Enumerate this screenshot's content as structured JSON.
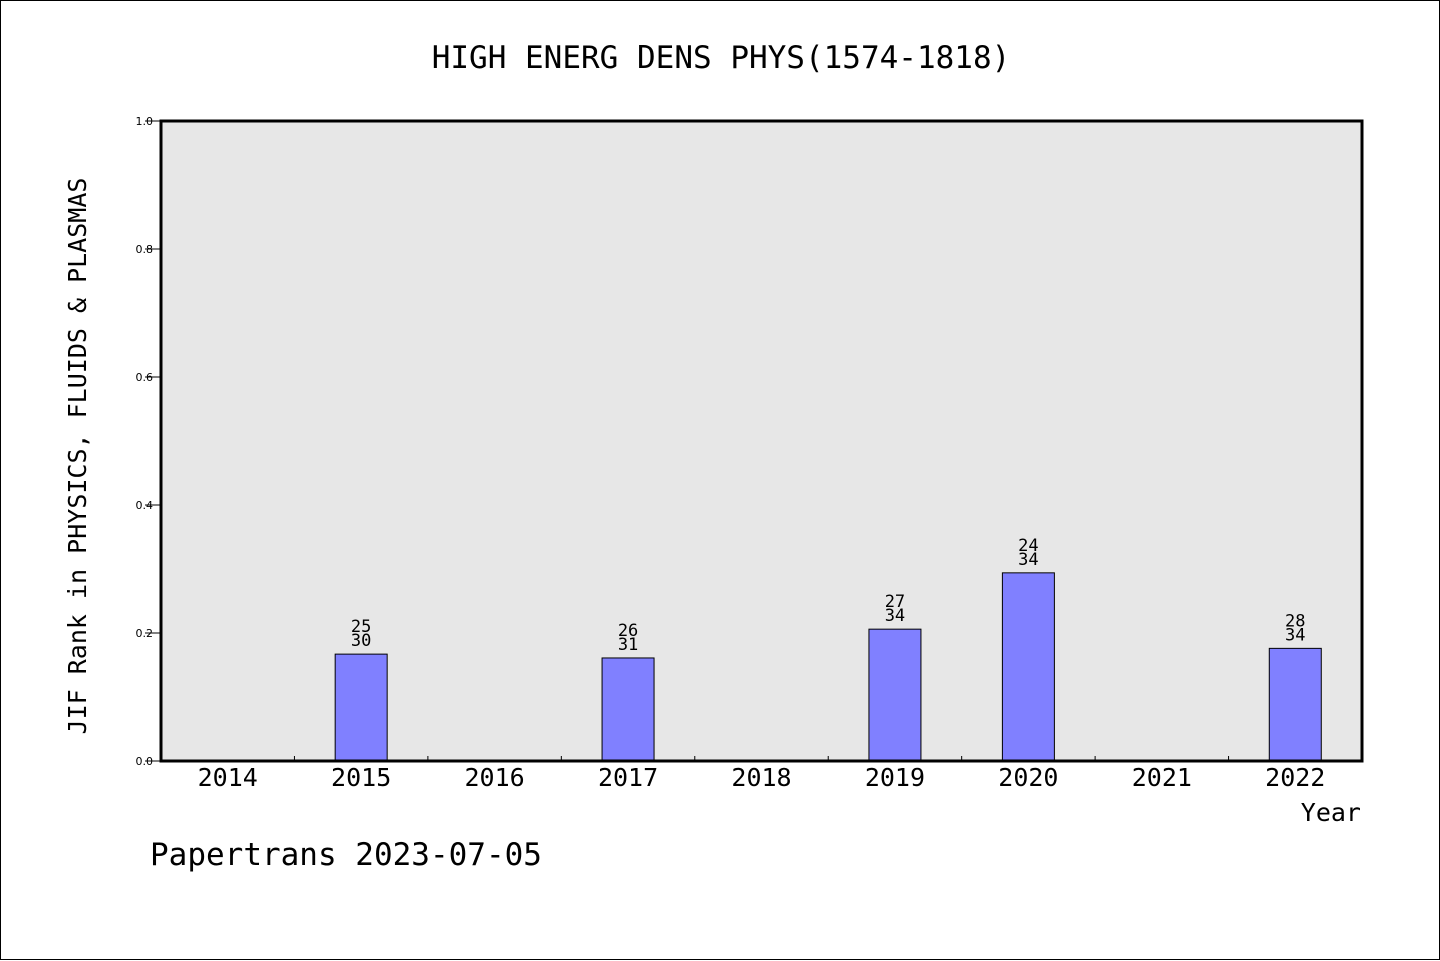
{
  "chart_data": {
    "type": "bar",
    "title": "HIGH ENERG DENS PHYS(1574-1818)",
    "xlabel": "Year",
    "ylabel": "JIF Rank in PHYSICS, FLUIDS & PLASMAS",
    "categories": [
      "2014",
      "2015",
      "2016",
      "2017",
      "2018",
      "2019",
      "2020",
      "2021",
      "2022"
    ],
    "values": [
      null,
      0.167,
      null,
      0.161,
      null,
      0.206,
      0.294,
      null,
      0.176
    ],
    "rank_labels": [
      null,
      {
        "rank": "25",
        "total": "30"
      },
      null,
      {
        "rank": "26",
        "total": "31"
      },
      null,
      {
        "rank": "27",
        "total": "34"
      },
      {
        "rank": "24",
        "total": "34"
      },
      null,
      {
        "rank": "28",
        "total": "34"
      }
    ],
    "ylim": [
      0.0,
      1.0
    ],
    "yticks": [
      "0.0",
      "0.2",
      "0.4",
      "0.6",
      "0.8",
      "1.0"
    ],
    "grid": false,
    "colors": {
      "bar_fill": "#8080ff",
      "bar_stroke": "#000000",
      "plot_background": "#e7e7e7"
    }
  },
  "footer": {
    "credit": "Papertrans 2023-07-05"
  }
}
